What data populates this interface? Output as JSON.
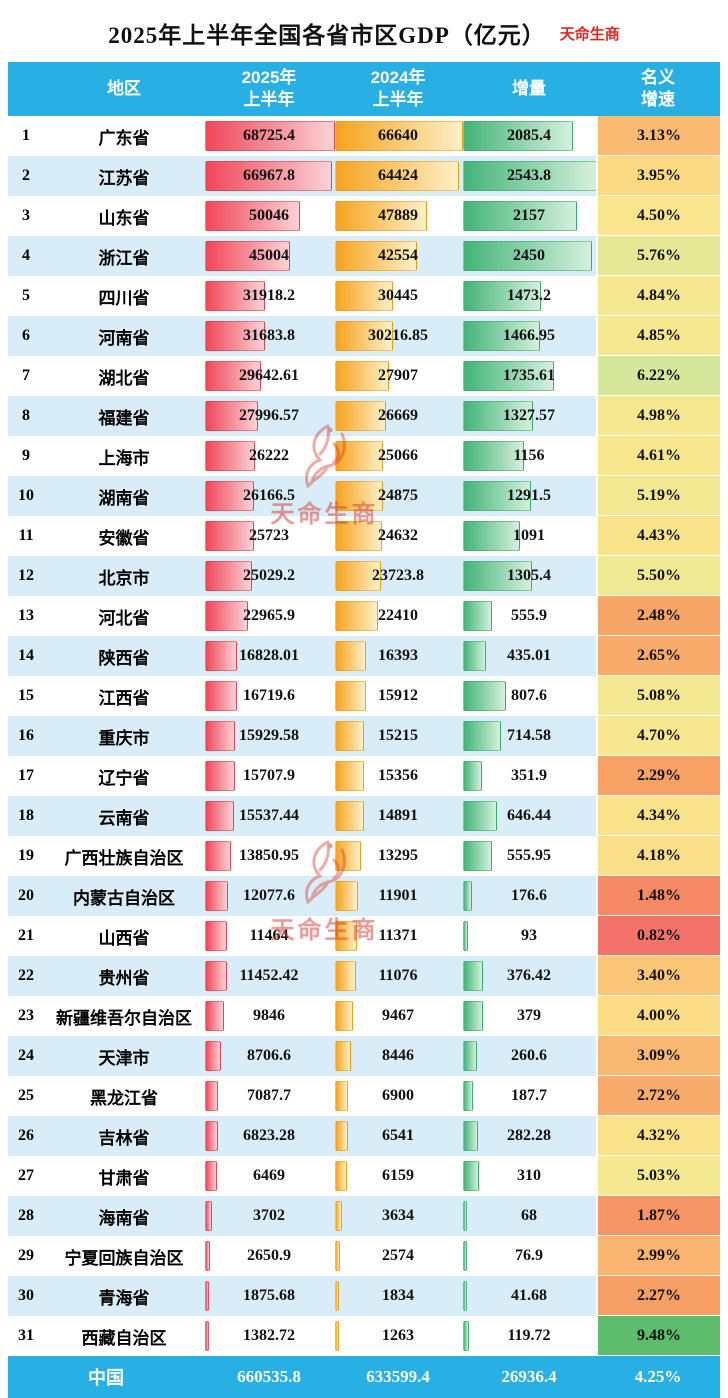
{
  "title": "2025年上半年全国各省市区GDP（亿元）",
  "brand": "天命生商",
  "watermark": {
    "text": "天命生商"
  },
  "header": {
    "region": "地区",
    "col2025_line1": "2025年",
    "col2025_line2": "上半年",
    "col2024_line1": "2024年",
    "col2024_line2": "上半年",
    "increment": "增量",
    "growth_line1": "名义",
    "growth_line2": "增速"
  },
  "colors": {
    "header_bg": "#28b0e5",
    "row_alt_bg": "#d9edf8",
    "accent_red": "#e02722",
    "bar_2025_start": "#f0475a",
    "bar_2025_end": "#fbd2d6",
    "bar_2024_start": "#f6a31d",
    "bar_2024_end": "#fdf0c8",
    "bar_increment_start": "#43b478",
    "bar_increment_end": "#d4f0dc"
  },
  "growth_color_scale": [
    {
      "value": 0.8,
      "color": "#f3726b"
    },
    {
      "value": 1.5,
      "color": "#f58a66"
    },
    {
      "value": 2.3,
      "color": "#f7a165"
    },
    {
      "value": 3.0,
      "color": "#f9b46f"
    },
    {
      "value": 3.5,
      "color": "#fbca7a"
    },
    {
      "value": 4.0,
      "color": "#fcdc85"
    },
    {
      "value": 4.6,
      "color": "#f8e78f"
    },
    {
      "value": 5.5,
      "color": "#f0e994"
    },
    {
      "value": 6.2,
      "color": "#d5e79a"
    },
    {
      "value": 7.0,
      "color": "#abd88c"
    },
    {
      "value": 9.5,
      "color": "#5dbd6d"
    }
  ],
  "chart_data": {
    "type": "table",
    "title": "2025年上半年全国各省市区GDP（亿元）",
    "columns": [
      "地区",
      "2025年上半年",
      "2024年上半年",
      "增量",
      "名义增速"
    ],
    "max": {
      "gdp2025": 68725.4,
      "gdp2024": 66640,
      "increment": 2543.8
    },
    "rows": [
      {
        "rank": 1,
        "region": "广东省",
        "gdp2025": 68725.4,
        "gdp2024": 66640,
        "increment": 2085.4,
        "growth_pct": 3.13
      },
      {
        "rank": 2,
        "region": "江苏省",
        "gdp2025": 66967.8,
        "gdp2024": 64424,
        "increment": 2543.8,
        "growth_pct": 3.95
      },
      {
        "rank": 3,
        "region": "山东省",
        "gdp2025": 50046,
        "gdp2024": 47889,
        "increment": 2157,
        "growth_pct": 4.5
      },
      {
        "rank": 4,
        "region": "浙江省",
        "gdp2025": 45004,
        "gdp2024": 42554,
        "increment": 2450,
        "growth_pct": 5.76
      },
      {
        "rank": 5,
        "region": "四川省",
        "gdp2025": 31918.2,
        "gdp2024": 30445,
        "increment": 1473.2,
        "growth_pct": 4.84
      },
      {
        "rank": 6,
        "region": "河南省",
        "gdp2025": 31683.8,
        "gdp2024": 30216.85,
        "increment": 1466.95,
        "growth_pct": 4.85
      },
      {
        "rank": 7,
        "region": "湖北省",
        "gdp2025": 29642.61,
        "gdp2024": 27907,
        "increment": 1735.61,
        "growth_pct": 6.22
      },
      {
        "rank": 8,
        "region": "福建省",
        "gdp2025": 27996.57,
        "gdp2024": 26669,
        "increment": 1327.57,
        "growth_pct": 4.98
      },
      {
        "rank": 9,
        "region": "上海市",
        "gdp2025": 26222,
        "gdp2024": 25066,
        "increment": 1156,
        "growth_pct": 4.61
      },
      {
        "rank": 10,
        "region": "湖南省",
        "gdp2025": 26166.5,
        "gdp2024": 24875,
        "increment": 1291.5,
        "growth_pct": 5.19
      },
      {
        "rank": 11,
        "region": "安徽省",
        "gdp2025": 25723,
        "gdp2024": 24632,
        "increment": 1091,
        "growth_pct": 4.43
      },
      {
        "rank": 12,
        "region": "北京市",
        "gdp2025": 25029.2,
        "gdp2024": 23723.8,
        "increment": 1305.4,
        "growth_pct": 5.5
      },
      {
        "rank": 13,
        "region": "河北省",
        "gdp2025": 22965.9,
        "gdp2024": 22410,
        "increment": 555.9,
        "growth_pct": 2.48
      },
      {
        "rank": 14,
        "region": "陕西省",
        "gdp2025": 16828.01,
        "gdp2024": 16393,
        "increment": 435.01,
        "growth_pct": 2.65
      },
      {
        "rank": 15,
        "region": "江西省",
        "gdp2025": 16719.6,
        "gdp2024": 15912,
        "increment": 807.6,
        "growth_pct": 5.08
      },
      {
        "rank": 16,
        "region": "重庆市",
        "gdp2025": 15929.58,
        "gdp2024": 15215,
        "increment": 714.58,
        "growth_pct": 4.7
      },
      {
        "rank": 17,
        "region": "辽宁省",
        "gdp2025": 15707.9,
        "gdp2024": 15356,
        "increment": 351.9,
        "growth_pct": 2.29
      },
      {
        "rank": 18,
        "region": "云南省",
        "gdp2025": 15537.44,
        "gdp2024": 14891,
        "increment": 646.44,
        "growth_pct": 4.34
      },
      {
        "rank": 19,
        "region": "广西壮族自治区",
        "gdp2025": 13850.95,
        "gdp2024": 13295,
        "increment": 555.95,
        "growth_pct": 4.18
      },
      {
        "rank": 20,
        "region": "内蒙古自治区",
        "gdp2025": 12077.6,
        "gdp2024": 11901,
        "increment": 176.6,
        "growth_pct": 1.48
      },
      {
        "rank": 21,
        "region": "山西省",
        "gdp2025": 11464,
        "gdp2024": 11371,
        "increment": 93,
        "growth_pct": 0.82
      },
      {
        "rank": 22,
        "region": "贵州省",
        "gdp2025": 11452.42,
        "gdp2024": 11076,
        "increment": 376.42,
        "growth_pct": 3.4
      },
      {
        "rank": 23,
        "region": "新疆维吾尔自治区",
        "gdp2025": 9846,
        "gdp2024": 9467,
        "increment": 379,
        "growth_pct": 4.0
      },
      {
        "rank": 24,
        "region": "天津市",
        "gdp2025": 8706.6,
        "gdp2024": 8446,
        "increment": 260.6,
        "growth_pct": 3.09
      },
      {
        "rank": 25,
        "region": "黑龙江省",
        "gdp2025": 7087.7,
        "gdp2024": 6900,
        "increment": 187.7,
        "growth_pct": 2.72
      },
      {
        "rank": 26,
        "region": "吉林省",
        "gdp2025": 6823.28,
        "gdp2024": 6541,
        "increment": 282.28,
        "growth_pct": 4.32
      },
      {
        "rank": 27,
        "region": "甘肃省",
        "gdp2025": 6469,
        "gdp2024": 6159,
        "increment": 310,
        "growth_pct": 5.03
      },
      {
        "rank": 28,
        "region": "海南省",
        "gdp2025": 3702,
        "gdp2024": 3634,
        "increment": 68,
        "growth_pct": 1.87
      },
      {
        "rank": 29,
        "region": "宁夏回族自治区",
        "gdp2025": 2650.9,
        "gdp2024": 2574,
        "increment": 76.9,
        "growth_pct": 2.99
      },
      {
        "rank": 30,
        "region": "青海省",
        "gdp2025": 1875.68,
        "gdp2024": 1834,
        "increment": 41.68,
        "growth_pct": 2.27
      },
      {
        "rank": 31,
        "region": "西藏自治区",
        "gdp2025": 1382.72,
        "gdp2024": 1263,
        "increment": 119.72,
        "growth_pct": 9.48
      }
    ],
    "total": {
      "region": "中国",
      "gdp2025": 660535.8,
      "gdp2024": 633599.4,
      "increment": 26936.4,
      "growth_pct": 4.25
    }
  }
}
